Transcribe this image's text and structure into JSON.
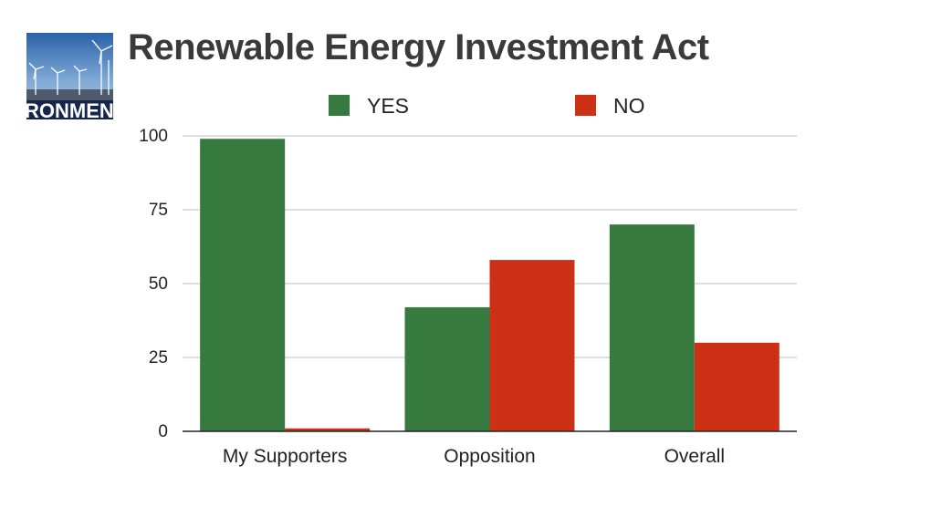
{
  "header": {
    "title": "Renewable Energy Investment Act",
    "thumbnail_text": "RONMEN",
    "thumbnail_icon": "wind-turbine-photo-icon"
  },
  "chart_data": {
    "type": "bar",
    "title": "Renewable Energy Investment Act",
    "categories": [
      "My Supporters",
      "Opposition",
      "Overall"
    ],
    "series": [
      {
        "name": "YES",
        "color": "#367a3f",
        "values": [
          99,
          42,
          70
        ]
      },
      {
        "name": "NO",
        "color": "#cc3116",
        "values": [
          1,
          58,
          30
        ]
      }
    ],
    "ylim": [
      0,
      100
    ],
    "yticks": [
      0,
      25,
      50,
      75,
      100
    ],
    "grid": true,
    "legend": "top"
  }
}
